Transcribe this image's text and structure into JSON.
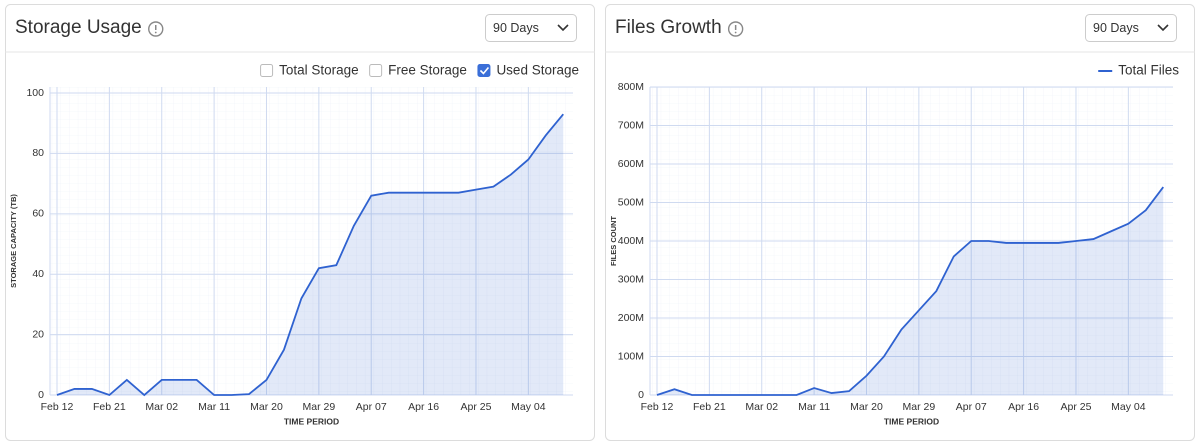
{
  "chart_data": [
    {
      "type": "line",
      "title": "Storage Usage",
      "range": "90 Days",
      "y_label": "STORAGE CAPACITY (TB)",
      "x_label": "TIME PERIOD",
      "toggles": [
        {
          "label": "Total Storage",
          "checked": false
        },
        {
          "label": "Free Storage",
          "checked": false
        }
      ],
      "categories": [
        "Feb 12",
        null,
        null,
        "Feb 21",
        null,
        null,
        "Mar 02",
        null,
        null,
        "Mar 11",
        null,
        null,
        "Mar 20",
        null,
        null,
        "Mar 29",
        null,
        null,
        "Apr 07",
        null,
        null,
        "Apr 16",
        null,
        null,
        "Apr 25",
        null,
        null,
        "May 04",
        null,
        null
      ],
      "series": [
        {
          "name": "Used Storage",
          "checked": true,
          "color": "#2f62d0",
          "values": [
            0,
            2,
            2,
            0,
            5,
            0,
            5,
            5,
            5,
            0,
            0,
            0.3,
            5,
            15,
            32,
            42,
            43,
            56,
            66,
            67,
            67,
            67,
            67,
            67,
            68,
            69,
            73,
            78,
            86,
            93
          ]
        }
      ],
      "ylim": [
        0,
        102
      ],
      "yticks": [
        0,
        20,
        40,
        60,
        80,
        100
      ],
      "grid": true
    },
    {
      "type": "line",
      "title": "Files Growth",
      "range": "90 Days",
      "y_label": "FILES COUNT",
      "x_label": "TIME PERIOD",
      "categories": [
        "Feb 12",
        null,
        null,
        "Feb 21",
        null,
        null,
        "Mar 02",
        null,
        null,
        "Mar 11",
        null,
        null,
        "Mar 20",
        null,
        null,
        "Mar 29",
        null,
        null,
        "Apr 07",
        null,
        null,
        "Apr 16",
        null,
        null,
        "Apr 25",
        null,
        null,
        "May 04",
        null,
        null
      ],
      "series": [
        {
          "name": "Total Files",
          "color": "#2f62d0",
          "values": [
            0,
            15000000,
            0,
            0,
            0,
            0,
            0,
            0,
            0,
            18000000,
            5000000,
            10000000,
            50000000,
            100000000,
            170000000,
            220000000,
            270000000,
            360000000,
            400000000,
            400000000,
            395000000,
            395000000,
            395000000,
            395000000,
            400000000,
            405000000,
            425000000,
            445000000,
            480000000,
            540000000
          ]
        }
      ],
      "ylim": [
        0,
        800000000
      ],
      "yticks": [
        0,
        {
          "value": 100000000,
          "label": "100M"
        },
        {
          "value": 200000000,
          "label": "200M"
        },
        {
          "value": 300000000,
          "label": "300M"
        },
        {
          "value": 400000000,
          "label": "400M"
        },
        {
          "value": 500000000,
          "label": "500M"
        },
        {
          "value": 600000000,
          "label": "600M"
        },
        {
          "value": 700000000,
          "label": "700M"
        },
        {
          "value": 800000000,
          "label": "800M"
        }
      ],
      "grid": true
    }
  ]
}
